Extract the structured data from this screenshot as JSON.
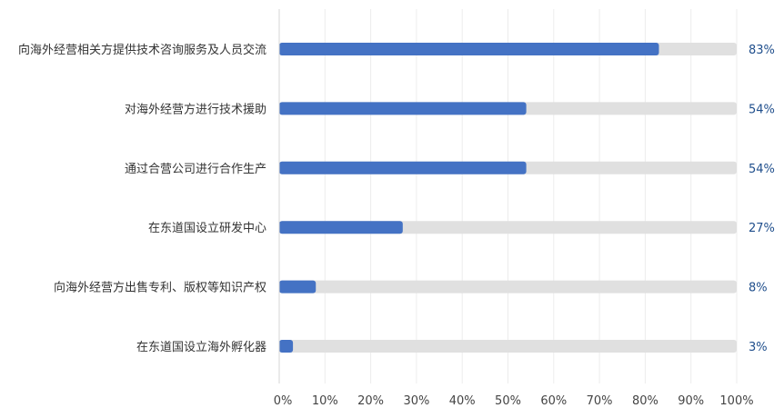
{
  "chart_data": {
    "type": "bar",
    "orientation": "horizontal",
    "categories": [
      "向海外经营相关方提供技术咨询服务及人员交流",
      "对海外经营方进行技术援助",
      "通过合营公司进行合作生产",
      "在东道国设立研发中心",
      "向海外经营方出售专利、版权等知识产权",
      "在东道国设立海外孵化器"
    ],
    "values": [
      83,
      54,
      54,
      27,
      8,
      3
    ],
    "value_labels": [
      "83%",
      "54%",
      "54%",
      "27%",
      "8%",
      "3%"
    ],
    "xlim": [
      0,
      100
    ],
    "x_ticks": [
      0,
      10,
      20,
      30,
      40,
      50,
      60,
      70,
      80,
      90,
      100
    ],
    "x_tick_labels": [
      "0%",
      "10%",
      "20%",
      "30%",
      "40%",
      "50%",
      "60%",
      "70%",
      "80%",
      "90%",
      "100%"
    ],
    "bar_color": "#4472c4",
    "track_color": "#e0e0e0",
    "value_label_color": "#1f4e8c",
    "grid": true,
    "legend": false
  }
}
